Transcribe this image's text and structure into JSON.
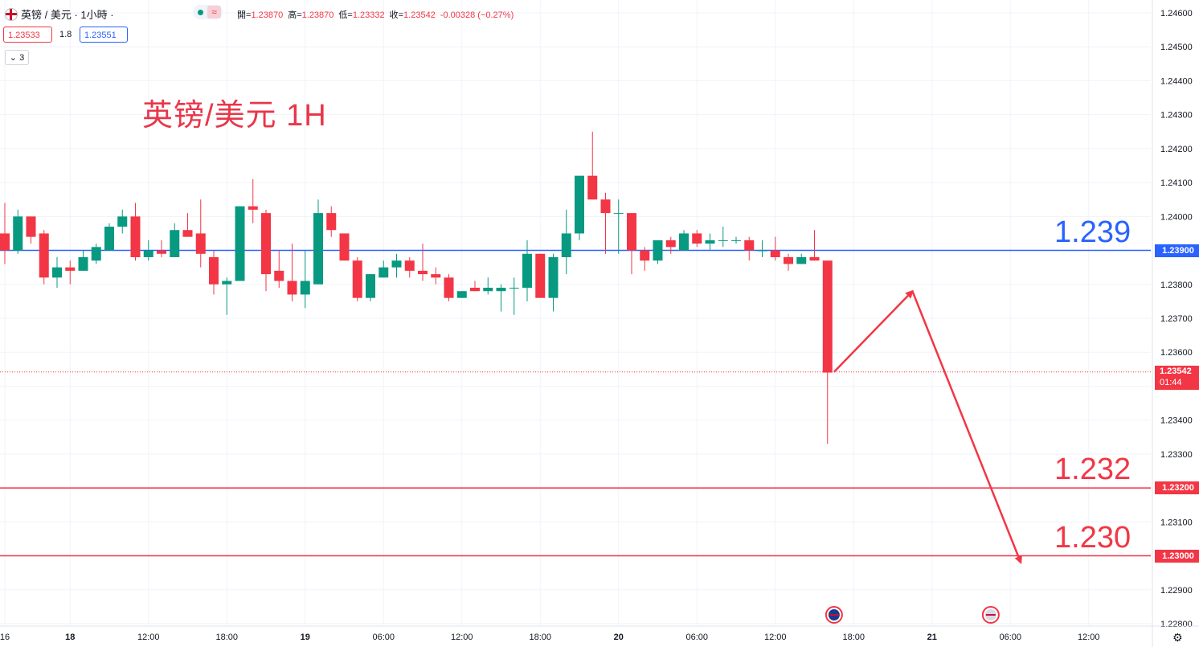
{
  "header": {
    "symbol": "英镑 / 美元 · 1小時 ·",
    "ohlc_text": [
      {
        "label": "開=",
        "value": "1.23870"
      },
      {
        "label": "高=",
        "value": "1.23870"
      },
      {
        "label": "低=",
        "value": "1.23332"
      },
      {
        "label": "收=",
        "value": "1.23542"
      },
      {
        "label": "",
        "value": "-0.00328 (−0.27%)"
      }
    ],
    "bid": "1.23533",
    "spread": "1.8",
    "ask": "1.23551",
    "indicators_toggle": "3",
    "wave_icon": "≈"
  },
  "chart_data": {
    "type": "candlestick",
    "title": "英镑/美元 1H",
    "y_ticks": [
      "1.24600",
      "1.24500",
      "1.24400",
      "1.24300",
      "1.24200",
      "1.24100",
      "1.24000",
      "1.23900",
      "1.23800",
      "1.23700",
      "1.23600",
      "1.23500",
      "1.23400",
      "1.23300",
      "1.23200",
      "1.23100",
      "1.23000",
      "1.22900",
      "1.22800"
    ],
    "ylim": [
      1.2278,
      1.2464
    ],
    "x_ticks": [
      {
        "label": "16",
        "bar": 0,
        "bold": false
      },
      {
        "label": "18",
        "bar": 5,
        "bold": true
      },
      {
        "label": "12:00",
        "bar": 11,
        "bold": false
      },
      {
        "label": "18:00",
        "bar": 17,
        "bold": false
      },
      {
        "label": "19",
        "bar": 23,
        "bold": true
      },
      {
        "label": "06:00",
        "bar": 29,
        "bold": false
      },
      {
        "label": "12:00",
        "bar": 35,
        "bold": false
      },
      {
        "label": "18:00",
        "bar": 41,
        "bold": false
      },
      {
        "label": "20",
        "bar": 47,
        "bold": true
      },
      {
        "label": "06:00",
        "bar": 53,
        "bold": false
      },
      {
        "label": "12:00",
        "bar": 59,
        "bold": false
      },
      {
        "label": "18:00",
        "bar": 65,
        "bold": false
      },
      {
        "label": "21",
        "bar": 71,
        "bold": true
      },
      {
        "label": "06:00",
        "bar": 77,
        "bold": false
      },
      {
        "label": "12:00",
        "bar": 83,
        "bold": false
      }
    ],
    "candles": [
      {
        "o": 1.2395,
        "h": 1.2404,
        "l": 1.2386,
        "c": 1.239
      },
      {
        "o": 1.239,
        "h": 1.2402,
        "l": 1.2389,
        "c": 1.24
      },
      {
        "o": 1.24,
        "h": 1.24,
        "l": 1.2392,
        "c": 1.2394
      },
      {
        "o": 1.2395,
        "h": 1.2396,
        "l": 1.238,
        "c": 1.2382
      },
      {
        "o": 1.2382,
        "h": 1.2388,
        "l": 1.2379,
        "c": 1.2385
      },
      {
        "o": 1.2385,
        "h": 1.2387,
        "l": 1.238,
        "c": 1.2384
      },
      {
        "o": 1.2384,
        "h": 1.239,
        "l": 1.2384,
        "c": 1.2388
      },
      {
        "o": 1.2387,
        "h": 1.2392,
        "l": 1.2386,
        "c": 1.2391
      },
      {
        "o": 1.239,
        "h": 1.2398,
        "l": 1.239,
        "c": 1.2397
      },
      {
        "o": 1.2397,
        "h": 1.2402,
        "l": 1.2395,
        "c": 1.24
      },
      {
        "o": 1.24,
        "h": 1.2404,
        "l": 1.2387,
        "c": 1.2388
      },
      {
        "o": 1.2388,
        "h": 1.2393,
        "l": 1.2387,
        "c": 1.239
      },
      {
        "o": 1.239,
        "h": 1.2393,
        "l": 1.2388,
        "c": 1.2389
      },
      {
        "o": 1.2388,
        "h": 1.2398,
        "l": 1.2388,
        "c": 1.2396
      },
      {
        "o": 1.2396,
        "h": 1.2401,
        "l": 1.2394,
        "c": 1.2394
      },
      {
        "o": 1.2395,
        "h": 1.2405,
        "l": 1.2385,
        "c": 1.2389
      },
      {
        "o": 1.2388,
        "h": 1.239,
        "l": 1.2377,
        "c": 1.238
      },
      {
        "o": 1.238,
        "h": 1.2382,
        "l": 1.2371,
        "c": 1.2381
      },
      {
        "o": 1.2381,
        "h": 1.2403,
        "l": 1.2381,
        "c": 1.2403
      },
      {
        "o": 1.2403,
        "h": 1.2411,
        "l": 1.2398,
        "c": 1.2402
      },
      {
        "o": 1.2401,
        "h": 1.2402,
        "l": 1.2378,
        "c": 1.2383
      },
      {
        "o": 1.2384,
        "h": 1.239,
        "l": 1.2379,
        "c": 1.2381
      },
      {
        "o": 1.2381,
        "h": 1.2392,
        "l": 1.2375,
        "c": 1.2377
      },
      {
        "o": 1.2377,
        "h": 1.239,
        "l": 1.2373,
        "c": 1.2381
      },
      {
        "o": 1.238,
        "h": 1.2405,
        "l": 1.238,
        "c": 1.2401
      },
      {
        "o": 1.2401,
        "h": 1.2403,
        "l": 1.2394,
        "c": 1.2396
      },
      {
        "o": 1.2395,
        "h": 1.2395,
        "l": 1.2387,
        "c": 1.2387
      },
      {
        "o": 1.2387,
        "h": 1.2388,
        "l": 1.2375,
        "c": 1.2376
      },
      {
        "o": 1.2376,
        "h": 1.2383,
        "l": 1.2375,
        "c": 1.2383
      },
      {
        "o": 1.2382,
        "h": 1.2387,
        "l": 1.2382,
        "c": 1.2385
      },
      {
        "o": 1.2385,
        "h": 1.2389,
        "l": 1.2382,
        "c": 1.2387
      },
      {
        "o": 1.2387,
        "h": 1.2388,
        "l": 1.2382,
        "c": 1.2384
      },
      {
        "o": 1.2384,
        "h": 1.2392,
        "l": 1.2381,
        "c": 1.2383
      },
      {
        "o": 1.2383,
        "h": 1.2385,
        "l": 1.238,
        "c": 1.2382
      },
      {
        "o": 1.2382,
        "h": 1.2383,
        "l": 1.2375,
        "c": 1.2376
      },
      {
        "o": 1.2376,
        "h": 1.2378,
        "l": 1.2376,
        "c": 1.2378
      },
      {
        "o": 1.2379,
        "h": 1.2381,
        "l": 1.2378,
        "c": 1.2378
      },
      {
        "o": 1.2378,
        "h": 1.2382,
        "l": 1.2377,
        "c": 1.2379
      },
      {
        "o": 1.2378,
        "h": 1.238,
        "l": 1.2372,
        "c": 1.2379
      },
      {
        "o": 1.2379,
        "h": 1.2382,
        "l": 1.2371,
        "c": 1.2379
      },
      {
        "o": 1.2379,
        "h": 1.2393,
        "l": 1.2375,
        "c": 1.2389
      },
      {
        "o": 1.2389,
        "h": 1.2389,
        "l": 1.2376,
        "c": 1.2376
      },
      {
        "o": 1.2376,
        "h": 1.2389,
        "l": 1.2372,
        "c": 1.2388
      },
      {
        "o": 1.2388,
        "h": 1.2402,
        "l": 1.2383,
        "c": 1.2395
      },
      {
        "o": 1.2395,
        "h": 1.2412,
        "l": 1.2393,
        "c": 1.2412
      },
      {
        "o": 1.2412,
        "h": 1.2425,
        "l": 1.2405,
        "c": 1.2405
      },
      {
        "o": 1.2405,
        "h": 1.2407,
        "l": 1.2389,
        "c": 1.2401
      },
      {
        "o": 1.2401,
        "h": 1.2405,
        "l": 1.2389,
        "c": 1.2401
      },
      {
        "o": 1.2401,
        "h": 1.2401,
        "l": 1.2383,
        "c": 1.239
      },
      {
        "o": 1.239,
        "h": 1.2391,
        "l": 1.2384,
        "c": 1.2387
      },
      {
        "o": 1.2387,
        "h": 1.2393,
        "l": 1.2386,
        "c": 1.2393
      },
      {
        "o": 1.2393,
        "h": 1.2394,
        "l": 1.2389,
        "c": 1.2391
      },
      {
        "o": 1.239,
        "h": 1.2396,
        "l": 1.239,
        "c": 1.2395
      },
      {
        "o": 1.2395,
        "h": 1.2396,
        "l": 1.2391,
        "c": 1.2392
      },
      {
        "o": 1.2392,
        "h": 1.2395,
        "l": 1.239,
        "c": 1.2393
      },
      {
        "o": 1.2393,
        "h": 1.2397,
        "l": 1.2391,
        "c": 1.2393
      },
      {
        "o": 1.2393,
        "h": 1.2394,
        "l": 1.2392,
        "c": 1.2393
      },
      {
        "o": 1.2393,
        "h": 1.2394,
        "l": 1.2387,
        "c": 1.239
      },
      {
        "o": 1.239,
        "h": 1.2393,
        "l": 1.2388,
        "c": 1.239
      },
      {
        "o": 1.239,
        "h": 1.2394,
        "l": 1.2387,
        "c": 1.2388
      },
      {
        "o": 1.2388,
        "h": 1.2389,
        "l": 1.2384,
        "c": 1.2386
      },
      {
        "o": 1.2386,
        "h": 1.2389,
        "l": 1.2386,
        "c": 1.2388
      },
      {
        "o": 1.2388,
        "h": 1.2396,
        "l": 1.2387,
        "c": 1.2387
      },
      {
        "o": 1.2387,
        "h": 1.2387,
        "l": 1.2333,
        "c": 1.2354
      }
    ],
    "up_color": "#089981",
    "down_color": "#f23645",
    "horizontal_levels": [
      {
        "value": 1.239,
        "text": "1.239",
        "tag": "1.23900",
        "color": "#2962ff"
      },
      {
        "value": 1.232,
        "text": "1.232",
        "tag": "1.23200",
        "color": "#f23645"
      },
      {
        "value": 1.23,
        "text": "1.230",
        "tag": "1.23000",
        "color": "#f23645"
      }
    ],
    "current_price": {
      "value": 1.23542,
      "label": "1.23542",
      "countdown": "01:44",
      "color": "#f23645"
    },
    "projection_path": [
      {
        "bar": 63.5,
        "value": 1.23542
      },
      {
        "bar": 69.5,
        "value": 1.2378
      },
      {
        "bar": 77.8,
        "value": 1.2298
      }
    ],
    "events": [
      {
        "bar": 63.5,
        "icon": "uk-flag-icon"
      },
      {
        "bar": 75.5,
        "icon": "us-flag-icon"
      }
    ]
  }
}
